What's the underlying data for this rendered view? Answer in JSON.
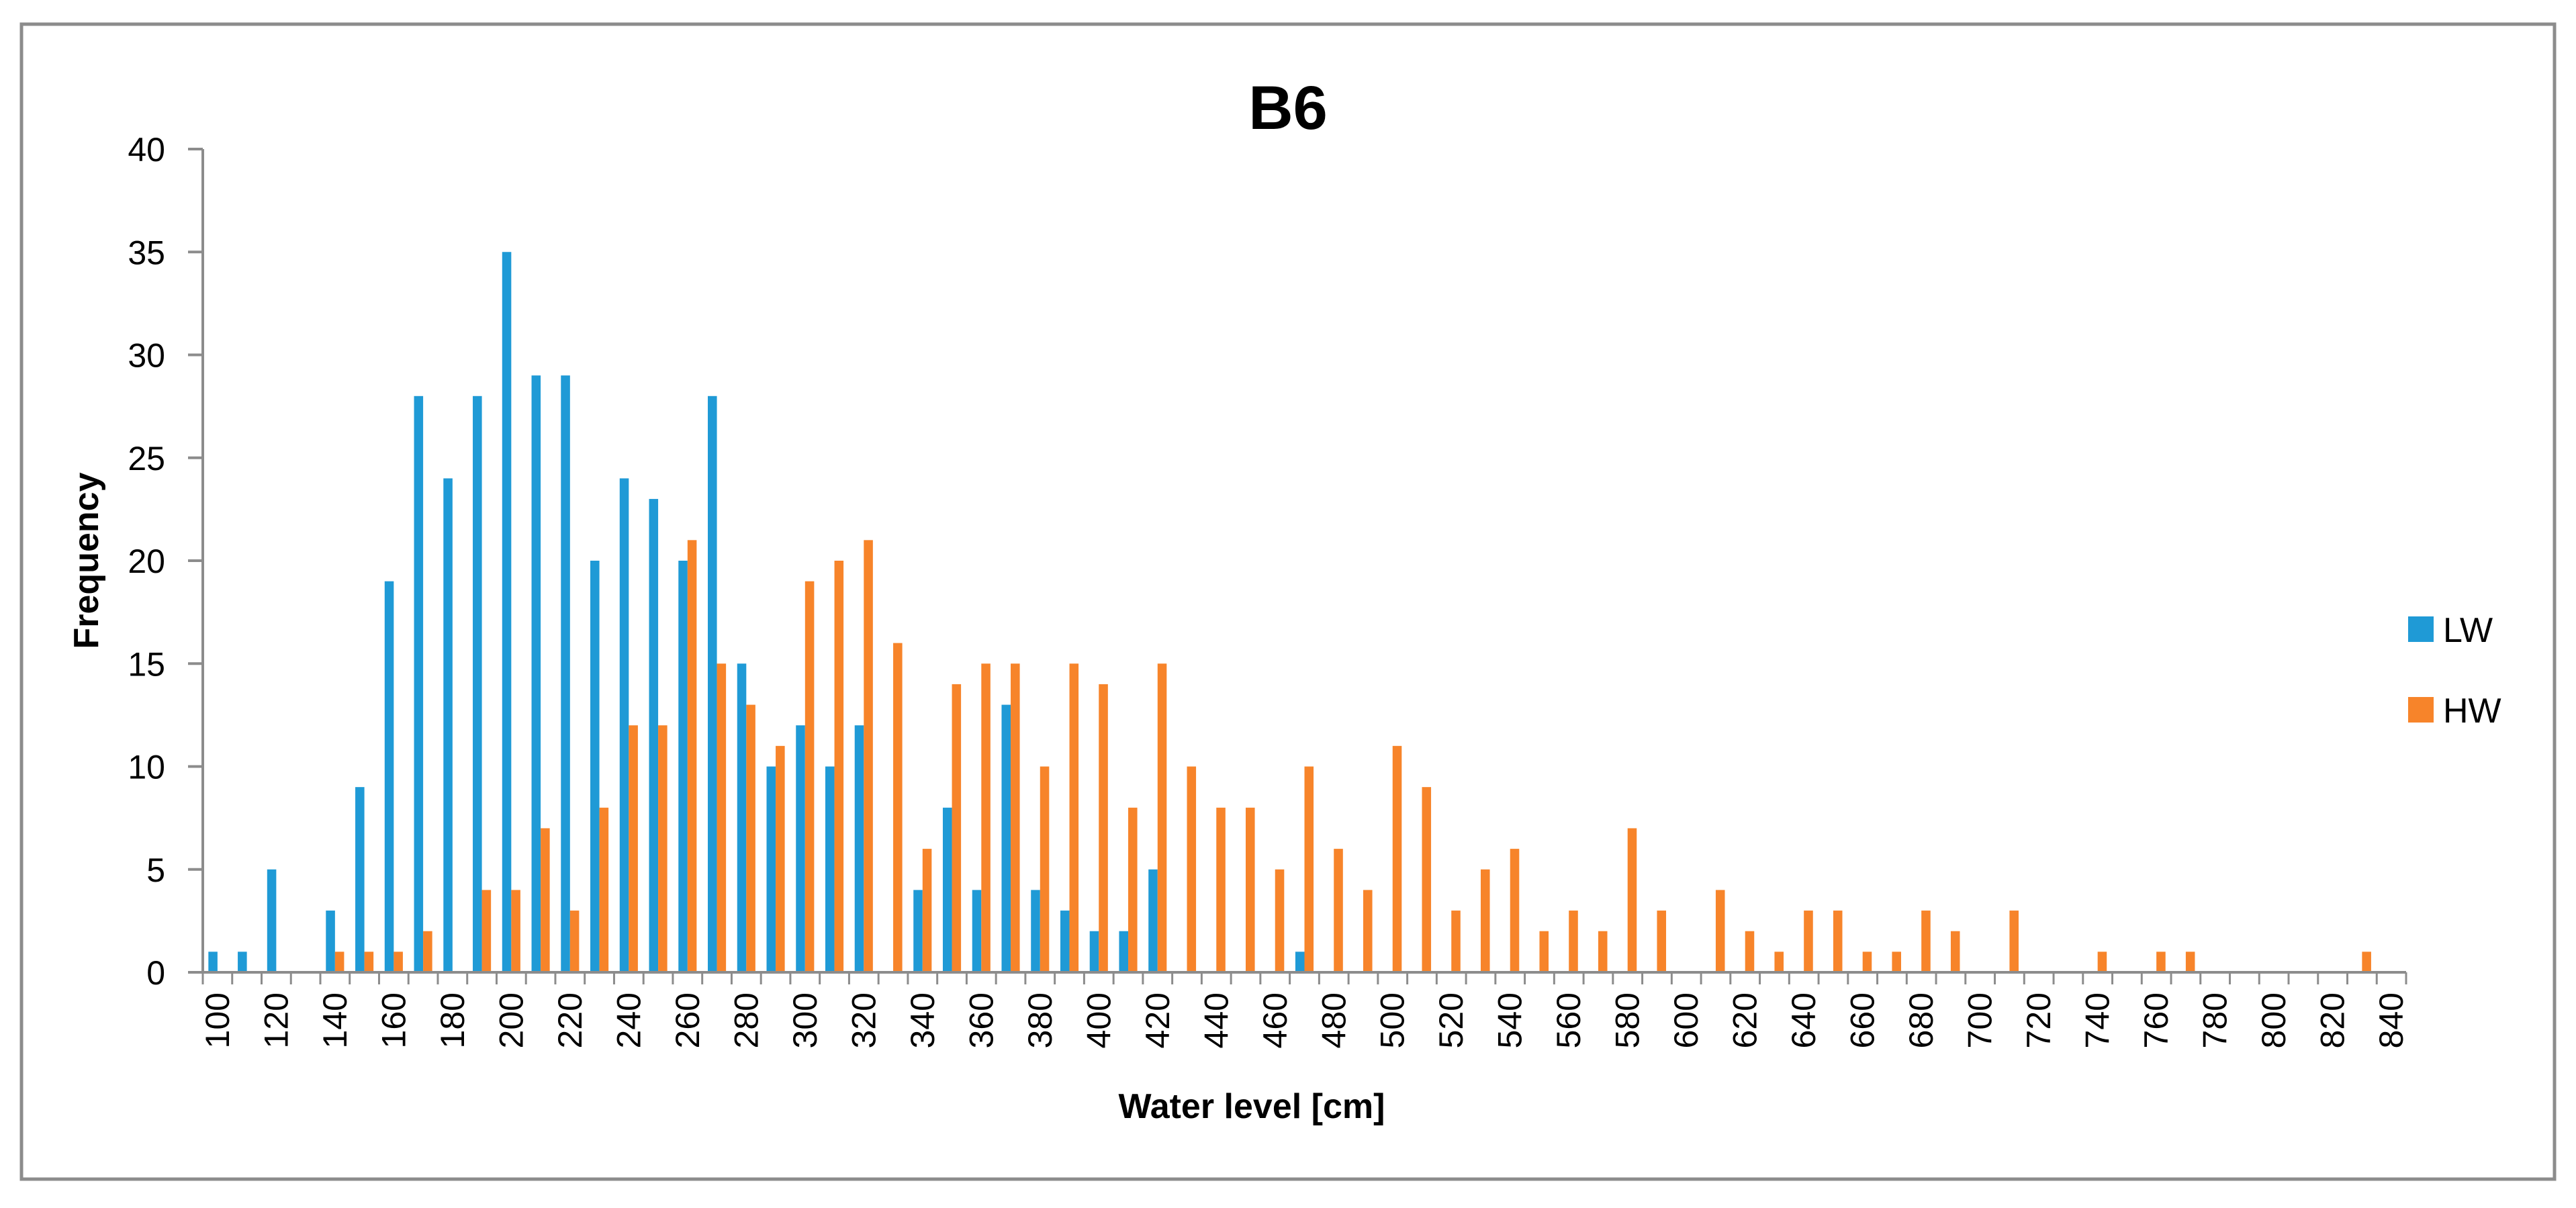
{
  "chart_data": {
    "type": "bar",
    "title": "B6",
    "xlabel": "Water level [cm]",
    "ylabel": "Frequency",
    "ylim": [
      0,
      40
    ],
    "yticks": [
      0,
      5,
      10,
      15,
      20,
      25,
      30,
      35,
      40
    ],
    "xlim": [
      100,
      850
    ],
    "bin_width": 10,
    "xtick_labels": [
      "100",
      "120",
      "140",
      "160",
      "180",
      "200",
      "220",
      "240",
      "260",
      "280",
      "300",
      "320",
      "340",
      "360",
      "380",
      "400",
      "420",
      "440",
      "460",
      "480",
      "500",
      "520",
      "540",
      "560",
      "580",
      "600",
      "620",
      "640",
      "660",
      "680",
      "700",
      "720",
      "740",
      "760",
      "780",
      "800",
      "820",
      "840"
    ],
    "legend_position": "right",
    "series": [
      {
        "name": "LW",
        "color": "#1f9ad6",
        "x": [
          100,
          110,
          120,
          140,
          150,
          160,
          170,
          180,
          190,
          200,
          210,
          220,
          230,
          240,
          250,
          260,
          270,
          280,
          290,
          300,
          310,
          320,
          340,
          350,
          360,
          370,
          380,
          390,
          400,
          410,
          420,
          470
        ],
        "values": [
          1,
          1,
          5,
          3,
          9,
          19,
          28,
          24,
          28,
          35,
          29,
          29,
          20,
          24,
          23,
          20,
          28,
          15,
          10,
          12,
          10,
          12,
          4,
          8,
          4,
          13,
          4,
          3,
          2,
          2,
          5,
          1
        ]
      },
      {
        "name": "HW",
        "color": "#f7842a",
        "x": [
          140,
          150,
          160,
          170,
          190,
          200,
          210,
          220,
          230,
          240,
          250,
          260,
          270,
          280,
          290,
          300,
          310,
          320,
          330,
          340,
          350,
          360,
          370,
          380,
          390,
          400,
          410,
          420,
          430,
          440,
          450,
          460,
          470,
          480,
          490,
          500,
          510,
          520,
          530,
          540,
          550,
          560,
          570,
          580,
          590,
          610,
          620,
          630,
          640,
          650,
          660,
          670,
          680,
          690,
          710,
          740,
          760,
          770,
          830
        ],
        "values": [
          1,
          1,
          1,
          2,
          4,
          4,
          7,
          3,
          8,
          12,
          12,
          21,
          15,
          13,
          11,
          19,
          20,
          21,
          16,
          6,
          14,
          15,
          15,
          10,
          15,
          14,
          8,
          15,
          10,
          8,
          8,
          5,
          10,
          6,
          4,
          11,
          9,
          3,
          5,
          6,
          2,
          3,
          2,
          7,
          3,
          4,
          2,
          1,
          3,
          3,
          1,
          1,
          3,
          2,
          3,
          1,
          1,
          1,
          1
        ]
      }
    ]
  }
}
